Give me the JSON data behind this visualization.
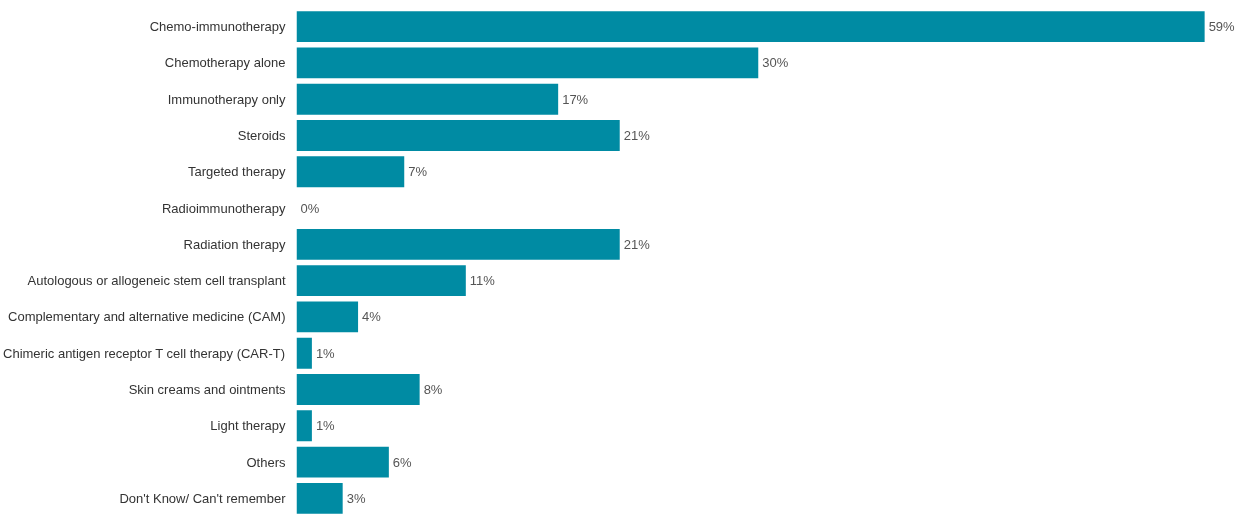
{
  "chart_data": {
    "type": "bar",
    "orientation": "horizontal",
    "categories": [
      "Chemo-immunotherapy",
      "Chemotherapy alone",
      "Immunotherapy only",
      "Steroids",
      "Targeted therapy",
      "Radioimmunotherapy",
      "Radiation therapy",
      "Autologous or allogeneic stem cell transplant",
      "Complementary and alternative medicine (CAM)",
      "Chimeric antigen receptor T cell therapy (CAR-T)",
      "Skin creams and ointments",
      "Light therapy",
      "Others",
      "Don't Know/ Can't remember"
    ],
    "values": [
      59,
      30,
      17,
      21,
      7,
      0,
      21,
      11,
      4,
      1,
      8,
      1,
      6,
      3
    ],
    "value_labels": [
      "59%",
      "30%",
      "17%",
      "21%",
      "7%",
      "0%",
      "21%",
      "11%",
      "4%",
      "1%",
      "8%",
      "1%",
      "6%",
      "3%"
    ],
    "color": "#008ba3",
    "grid": false
  }
}
